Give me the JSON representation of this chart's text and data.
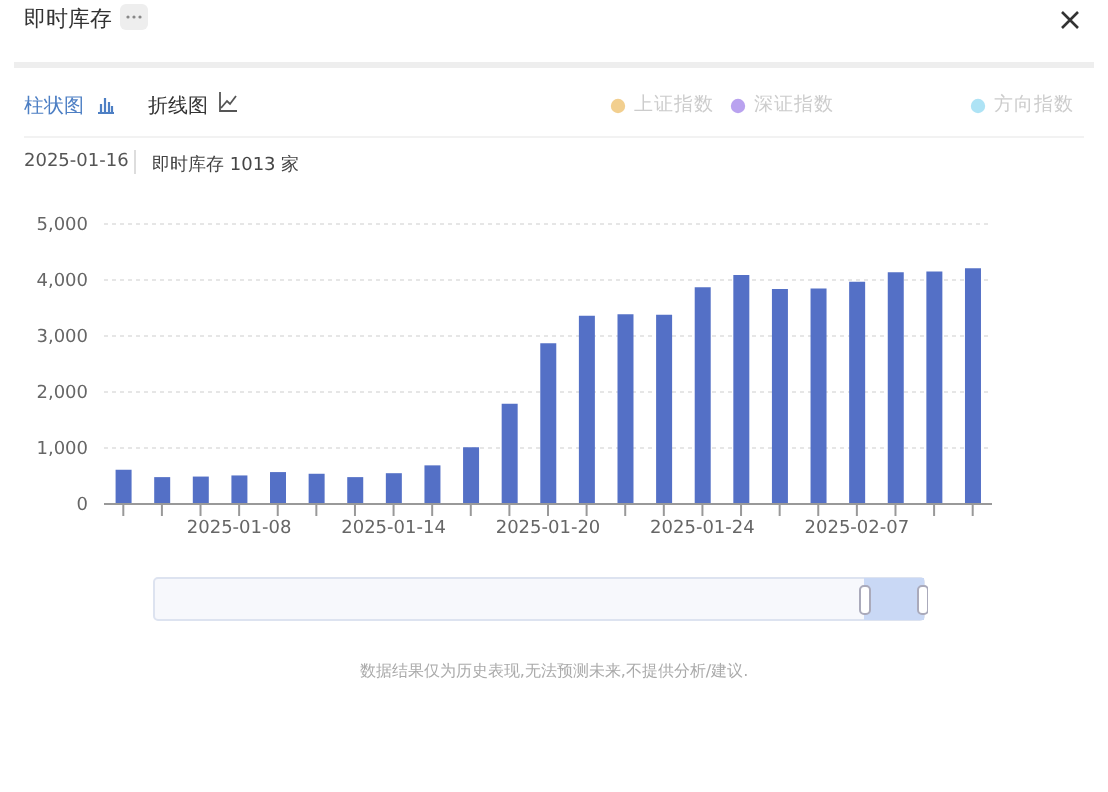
{
  "chart_data": {
    "type": "bar",
    "title": "即时库存",
    "categories": [
      null,
      null,
      null,
      "2025-01-08",
      null,
      null,
      null,
      "2025-01-14",
      null,
      null,
      null,
      "2025-01-20",
      null,
      null,
      null,
      "2025-01-24",
      null,
      null,
      null,
      "2025-02-07",
      null,
      null,
      null
    ],
    "values": [
      610,
      480,
      490,
      510,
      570,
      540,
      480,
      550,
      690,
      1013,
      1790,
      2870,
      3360,
      3390,
      3380,
      3870,
      4090,
      3840,
      3850,
      3970,
      4140,
      4150,
      4210
    ],
    "color": "#5470c6",
    "ylim": [
      0,
      5000
    ],
    "yticks": [
      {
        "value": 0,
        "label": "0"
      },
      {
        "value": 1000,
        "label": "1,000"
      },
      {
        "value": 2000,
        "label": "2,000"
      },
      {
        "value": 3000,
        "label": "3,000"
      },
      {
        "value": 4000,
        "label": "4,000"
      },
      {
        "value": 5000,
        "label": "5,000"
      }
    ],
    "grid": "y",
    "annotations": [
      "柱状图",
      "折线图",
      "上证指数",
      "深证指数",
      "方向指数",
      "2025-01-16",
      "即时库存 1013 家",
      "数据结果仅为历史表现,无法预测未来,不提供分析/建议."
    ]
  }
}
